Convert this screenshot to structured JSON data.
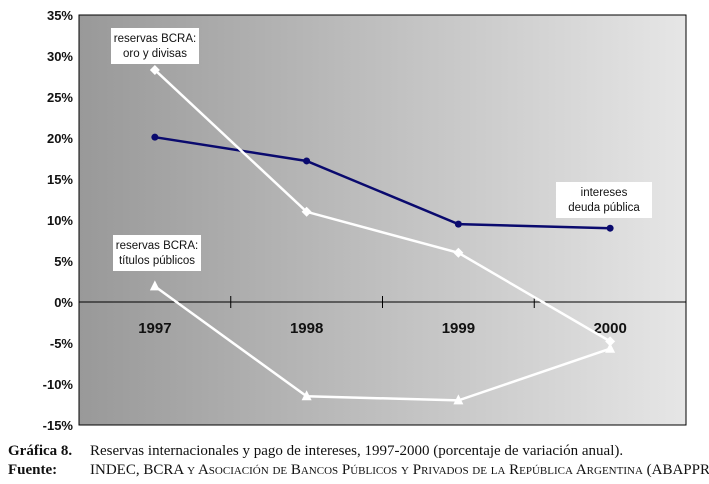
{
  "chart_data": {
    "type": "line",
    "categories": [
      "1997",
      "1998",
      "1999",
      "2000"
    ],
    "ylim": [
      -15,
      35
    ],
    "yticks": [
      35,
      30,
      25,
      20,
      15,
      10,
      5,
      0,
      -5,
      -10,
      -15
    ],
    "ytick_labels": [
      "35%",
      "30%",
      "25%",
      "20%",
      "15%",
      "10%",
      "5%",
      "0%",
      "-5%",
      "-10%",
      "-15%"
    ],
    "grid": false,
    "series": [
      {
        "name": "intereses deuda pública",
        "label_lines": [
          "intereses",
          "deuda pública"
        ],
        "color": "#0a0a6e",
        "marker": "circle",
        "values": [
          20.1,
          17.2,
          9.5,
          9.0
        ]
      },
      {
        "name": "reservas BCRA: oro y divisas",
        "label_lines": [
          "reservas BCRA:",
          "oro y divisas"
        ],
        "color": "#ffffff",
        "marker": "diamond",
        "values": [
          28.3,
          11.0,
          6.0,
          -4.8
        ]
      },
      {
        "name": "reservas BCRA: títulos públicos",
        "label_lines": [
          "reservas BCRA:",
          "títulos públicos"
        ],
        "color": "#ffffff",
        "marker": "triangle",
        "values": [
          1.9,
          -11.5,
          -12.0,
          -5.7
        ]
      }
    ]
  },
  "caption": {
    "label": "Gráfica 8.",
    "text": "Reservas internacionales y pago de intereses, 1997-2000 (porcentaje de variación anual).",
    "source_label": "Fuente:",
    "source_text": "INDEC, BCRA y Asociación de Bancos Públicos y Privados de la República Argentina (ABAPPRA)."
  }
}
